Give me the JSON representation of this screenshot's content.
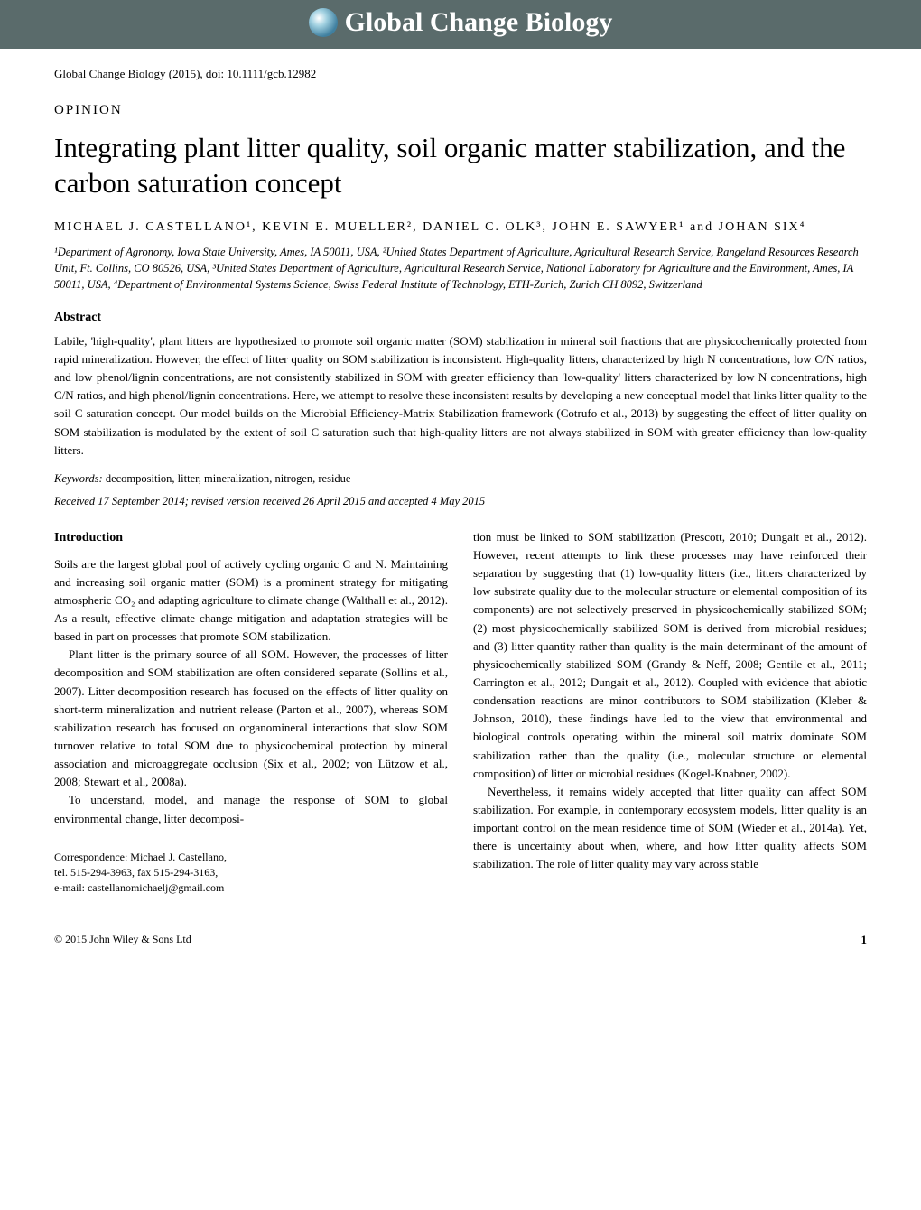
{
  "journal": {
    "name": "Global Change Biology",
    "banner_bg": "#5a6b6b",
    "banner_text_color": "#ffffff"
  },
  "citation": "Global Change Biology (2015), doi: 10.1111/gcb.12982",
  "article_type": "OPINION",
  "title": "Integrating plant litter quality, soil organic matter stabilization, and the carbon saturation concept",
  "authors_line": "MICHAEL J. CASTELLANO¹, KEVIN E. MUELLER², DANIEL C. OLK³, JOHN E. SAWYER¹ and JOHAN SIX⁴",
  "affiliations": "¹Department of Agronomy, Iowa State University, Ames, IA 50011, USA, ²United States Department of Agriculture, Agricultural Research Service, Rangeland Resources Research Unit, Ft. Collins, CO 80526, USA, ³United States Department of Agriculture, Agricultural Research Service, National Laboratory for Agriculture and the Environment, Ames, IA 50011, USA, ⁴Department of Environmental Systems Science, Swiss Federal Institute of Technology, ETH-Zurich, Zurich CH 8092, Switzerland",
  "abstract": {
    "heading": "Abstract",
    "text": "Labile, 'high-quality', plant litters are hypothesized to promote soil organic matter (SOM) stabilization in mineral soil fractions that are physicochemically protected from rapid mineralization. However, the effect of litter quality on SOM stabilization is inconsistent. High-quality litters, characterized by high N concentrations, low C/N ratios, and low phenol/lignin concentrations, are not consistently stabilized in SOM with greater efficiency than 'low-quality' litters characterized by low N concentrations, high C/N ratios, and high phenol/lignin concentrations. Here, we attempt to resolve these inconsistent results by developing a new conceptual model that links litter quality to the soil C saturation concept. Our model builds on the Microbial Efficiency-Matrix Stabilization framework (Cotrufo et al., 2013) by suggesting the effect of litter quality on SOM stabilization is modulated by the extent of soil C saturation such that high-quality litters are not always stabilized in SOM with greater efficiency than low-quality litters."
  },
  "keywords": {
    "label": "Keywords:",
    "text": "  decomposition, litter, mineralization, nitrogen, residue"
  },
  "received": "Received 17 September 2014; revised version received 26 April 2015 and accepted 4 May 2015",
  "body": {
    "intro_heading": "Introduction",
    "left_col": {
      "p1": "Soils are the largest global pool of actively cycling organic C and N. Maintaining and increasing soil organic matter (SOM) is a prominent strategy for mitigating atmospheric CO₂ and adapting agriculture to climate change (Walthall et al., 2012). As a result, effective climate change mitigation and adaptation strategies will be based in part on processes that promote SOM stabilization.",
      "p2": "Plant litter is the primary source of all SOM. However, the processes of litter decomposition and SOM stabilization are often considered separate (Sollins et al., 2007). Litter decomposition research has focused on the effects of litter quality on short-term mineralization and nutrient release (Parton et al., 2007), whereas SOM stabilization research has focused on organomineral interactions that slow SOM turnover relative to total SOM due to physicochemical protection by mineral association and microaggregate occlusion (Six et al., 2002; von Lützow et al., 2008; Stewart et al., 2008a).",
      "p3": "To understand, model, and manage the response of SOM to global environmental change, litter decomposi-"
    },
    "right_col": {
      "p1": "tion must be linked to SOM stabilization (Prescott, 2010; Dungait et al., 2012). However, recent attempts to link these processes may have reinforced their separation by suggesting that (1) low-quality litters (i.e., litters characterized by low substrate quality due to the molecular structure or elemental composition of its components) are not selectively preserved in physicochemically stabilized SOM; (2) most physicochemically stabilized SOM is derived from microbial residues; and (3) litter quantity rather than quality is the main determinant of the amount of physicochemically stabilized SOM (Grandy & Neff, 2008; Gentile et al., 2011; Carrington et al., 2012; Dungait et al., 2012). Coupled with evidence that abiotic condensation reactions are minor contributors to SOM stabilization (Kleber & Johnson, 2010), these findings have led to the view that environmental and biological controls operating within the mineral soil matrix dominate SOM stabilization rather than the quality (i.e., molecular structure or elemental composition) of litter or microbial residues (Kogel-Knabner, 2002).",
      "p2": "Nevertheless, it remains widely accepted that litter quality can affect SOM stabilization. For example, in contemporary ecosystem models, litter quality is an important control on the mean residence time of SOM (Wieder et al., 2014a). Yet, there is uncertainty about when, where, and how litter quality affects SOM stabilization. The role of litter quality may vary across stable"
    }
  },
  "correspondence": {
    "line1": "Correspondence: Michael J. Castellano,",
    "line2": "tel. 515-294-3963, fax 515-294-3163,",
    "line3": "e-mail: castellanomichaelj@gmail.com"
  },
  "footer": {
    "copyright": "© 2015 John Wiley & Sons Ltd",
    "page": "1"
  }
}
